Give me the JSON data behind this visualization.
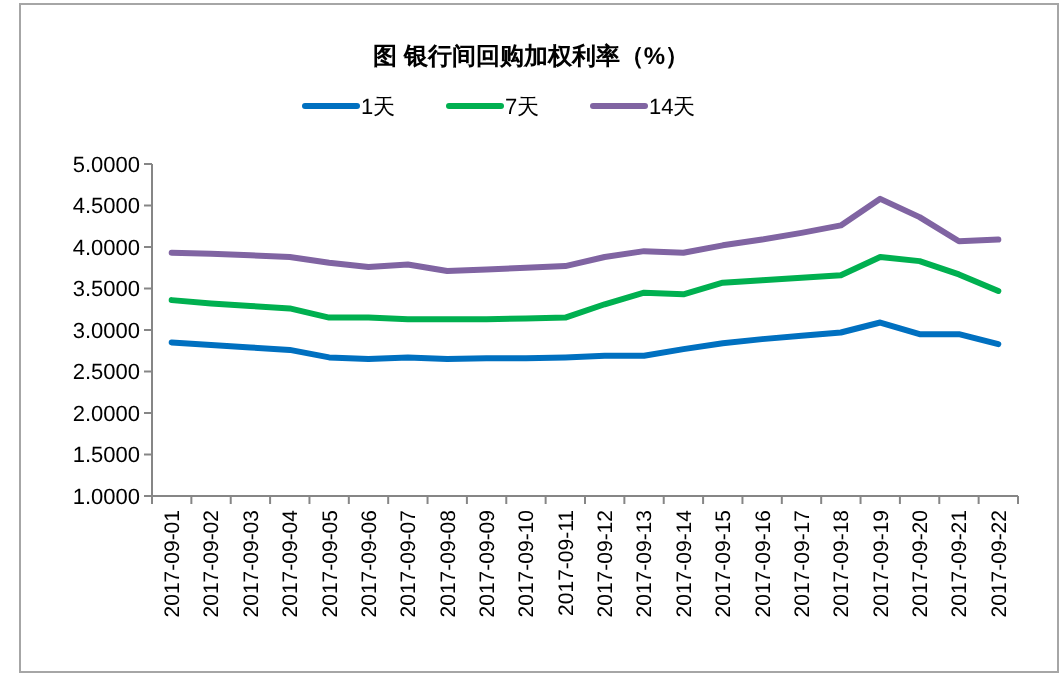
{
  "chart_data": {
    "type": "line",
    "title": "图  银行间回购加权利率（%）",
    "categories": [
      "2017-09-01",
      "2017-09-02",
      "2017-09-03",
      "2017-09-04",
      "2017-09-05",
      "2017-09-06",
      "2017-09-07",
      "2017-09-08",
      "2017-09-09",
      "2017-09-10",
      "2017-09-11",
      "2017-09-12",
      "2017-09-13",
      "2017-09-14",
      "2017-09-15",
      "2017-09-16",
      "2017-09-17",
      "2017-09-18",
      "2017-09-19",
      "2017-09-20",
      "2017-09-21",
      "2017-09-22"
    ],
    "series": [
      {
        "name": "1天",
        "color": "#0070c0",
        "values": [
          2.85,
          2.82,
          2.79,
          2.76,
          2.67,
          2.65,
          2.67,
          2.65,
          2.66,
          2.66,
          2.67,
          2.69,
          2.69,
          2.77,
          2.84,
          2.89,
          2.93,
          2.97,
          3.09,
          2.95,
          2.95,
          2.83
        ]
      },
      {
        "name": "7天",
        "color": "#00b050",
        "values": [
          3.36,
          3.32,
          3.29,
          3.26,
          3.15,
          3.15,
          3.13,
          3.13,
          3.13,
          3.14,
          3.15,
          3.31,
          3.45,
          3.43,
          3.57,
          3.6,
          3.63,
          3.66,
          3.88,
          3.83,
          3.67,
          3.47
        ]
      },
      {
        "name": "14天",
        "color": "#8064a2",
        "values": [
          3.93,
          3.92,
          3.9,
          3.88,
          3.81,
          3.76,
          3.79,
          3.71,
          3.73,
          3.75,
          3.77,
          3.88,
          3.95,
          3.93,
          4.02,
          4.09,
          4.17,
          4.26,
          4.58,
          4.36,
          4.07,
          4.09
        ]
      }
    ],
    "ylim": [
      1,
      5
    ],
    "yticks": [
      {
        "value": 1,
        "label": "1.0000"
      },
      {
        "value": 1.5,
        "label": "1.5000"
      },
      {
        "value": 2,
        "label": "2.0000"
      },
      {
        "value": 2.5,
        "label": "2.5000"
      },
      {
        "value": 3,
        "label": "3.0000"
      },
      {
        "value": 3.5,
        "label": "3.5000"
      },
      {
        "value": 4,
        "label": "4.0000"
      },
      {
        "value": 4.5,
        "label": "4.5000"
      },
      {
        "value": 5,
        "label": "5.0000"
      }
    ],
    "grid": false,
    "legend": "top",
    "marker": "none",
    "line_style": "solid"
  }
}
